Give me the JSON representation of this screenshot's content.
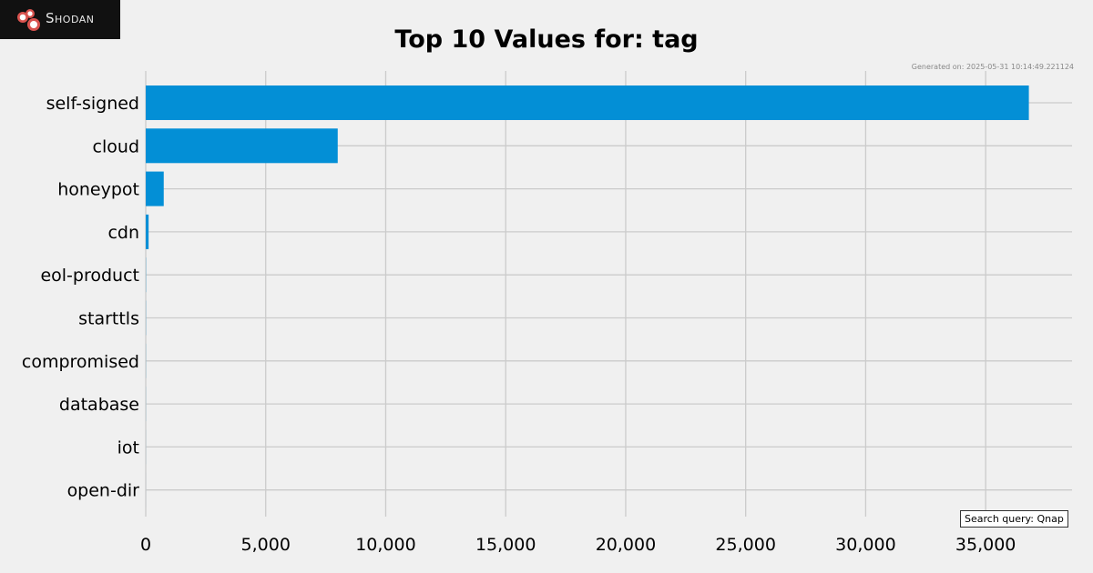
{
  "logo": {
    "text": "Shodan",
    "icon": "shodan-logo-icon",
    "background": "#111111",
    "accent": "#d9534f"
  },
  "generated_on": "Generated on: 2025-05-31 10:14:49.221124",
  "search_query": "Search query: Qnap",
  "colors": {
    "bar": "#038fd6",
    "background": "#f0f0f0",
    "grid": "#cbcbcb"
  },
  "chart_data": {
    "type": "bar",
    "orientation": "horizontal",
    "title": "Top 10 Values for: tag",
    "xlabel": "",
    "ylabel": "",
    "categories": [
      "self-signed",
      "cloud",
      "honeypot",
      "cdn",
      "eol-product",
      "starttls",
      "compromised",
      "database",
      "iot",
      "open-dir"
    ],
    "values": [
      36800,
      8000,
      750,
      120,
      8,
      6,
      4,
      3,
      2,
      1
    ],
    "xlim": [
      0,
      38600
    ],
    "xticks": [
      0,
      5000,
      10000,
      15000,
      20000,
      25000,
      30000,
      35000
    ],
    "xtick_labels": [
      "0",
      "5,000",
      "10,000",
      "15,000",
      "20,000",
      "25,000",
      "30,000",
      "35,000"
    ],
    "grid": true
  }
}
